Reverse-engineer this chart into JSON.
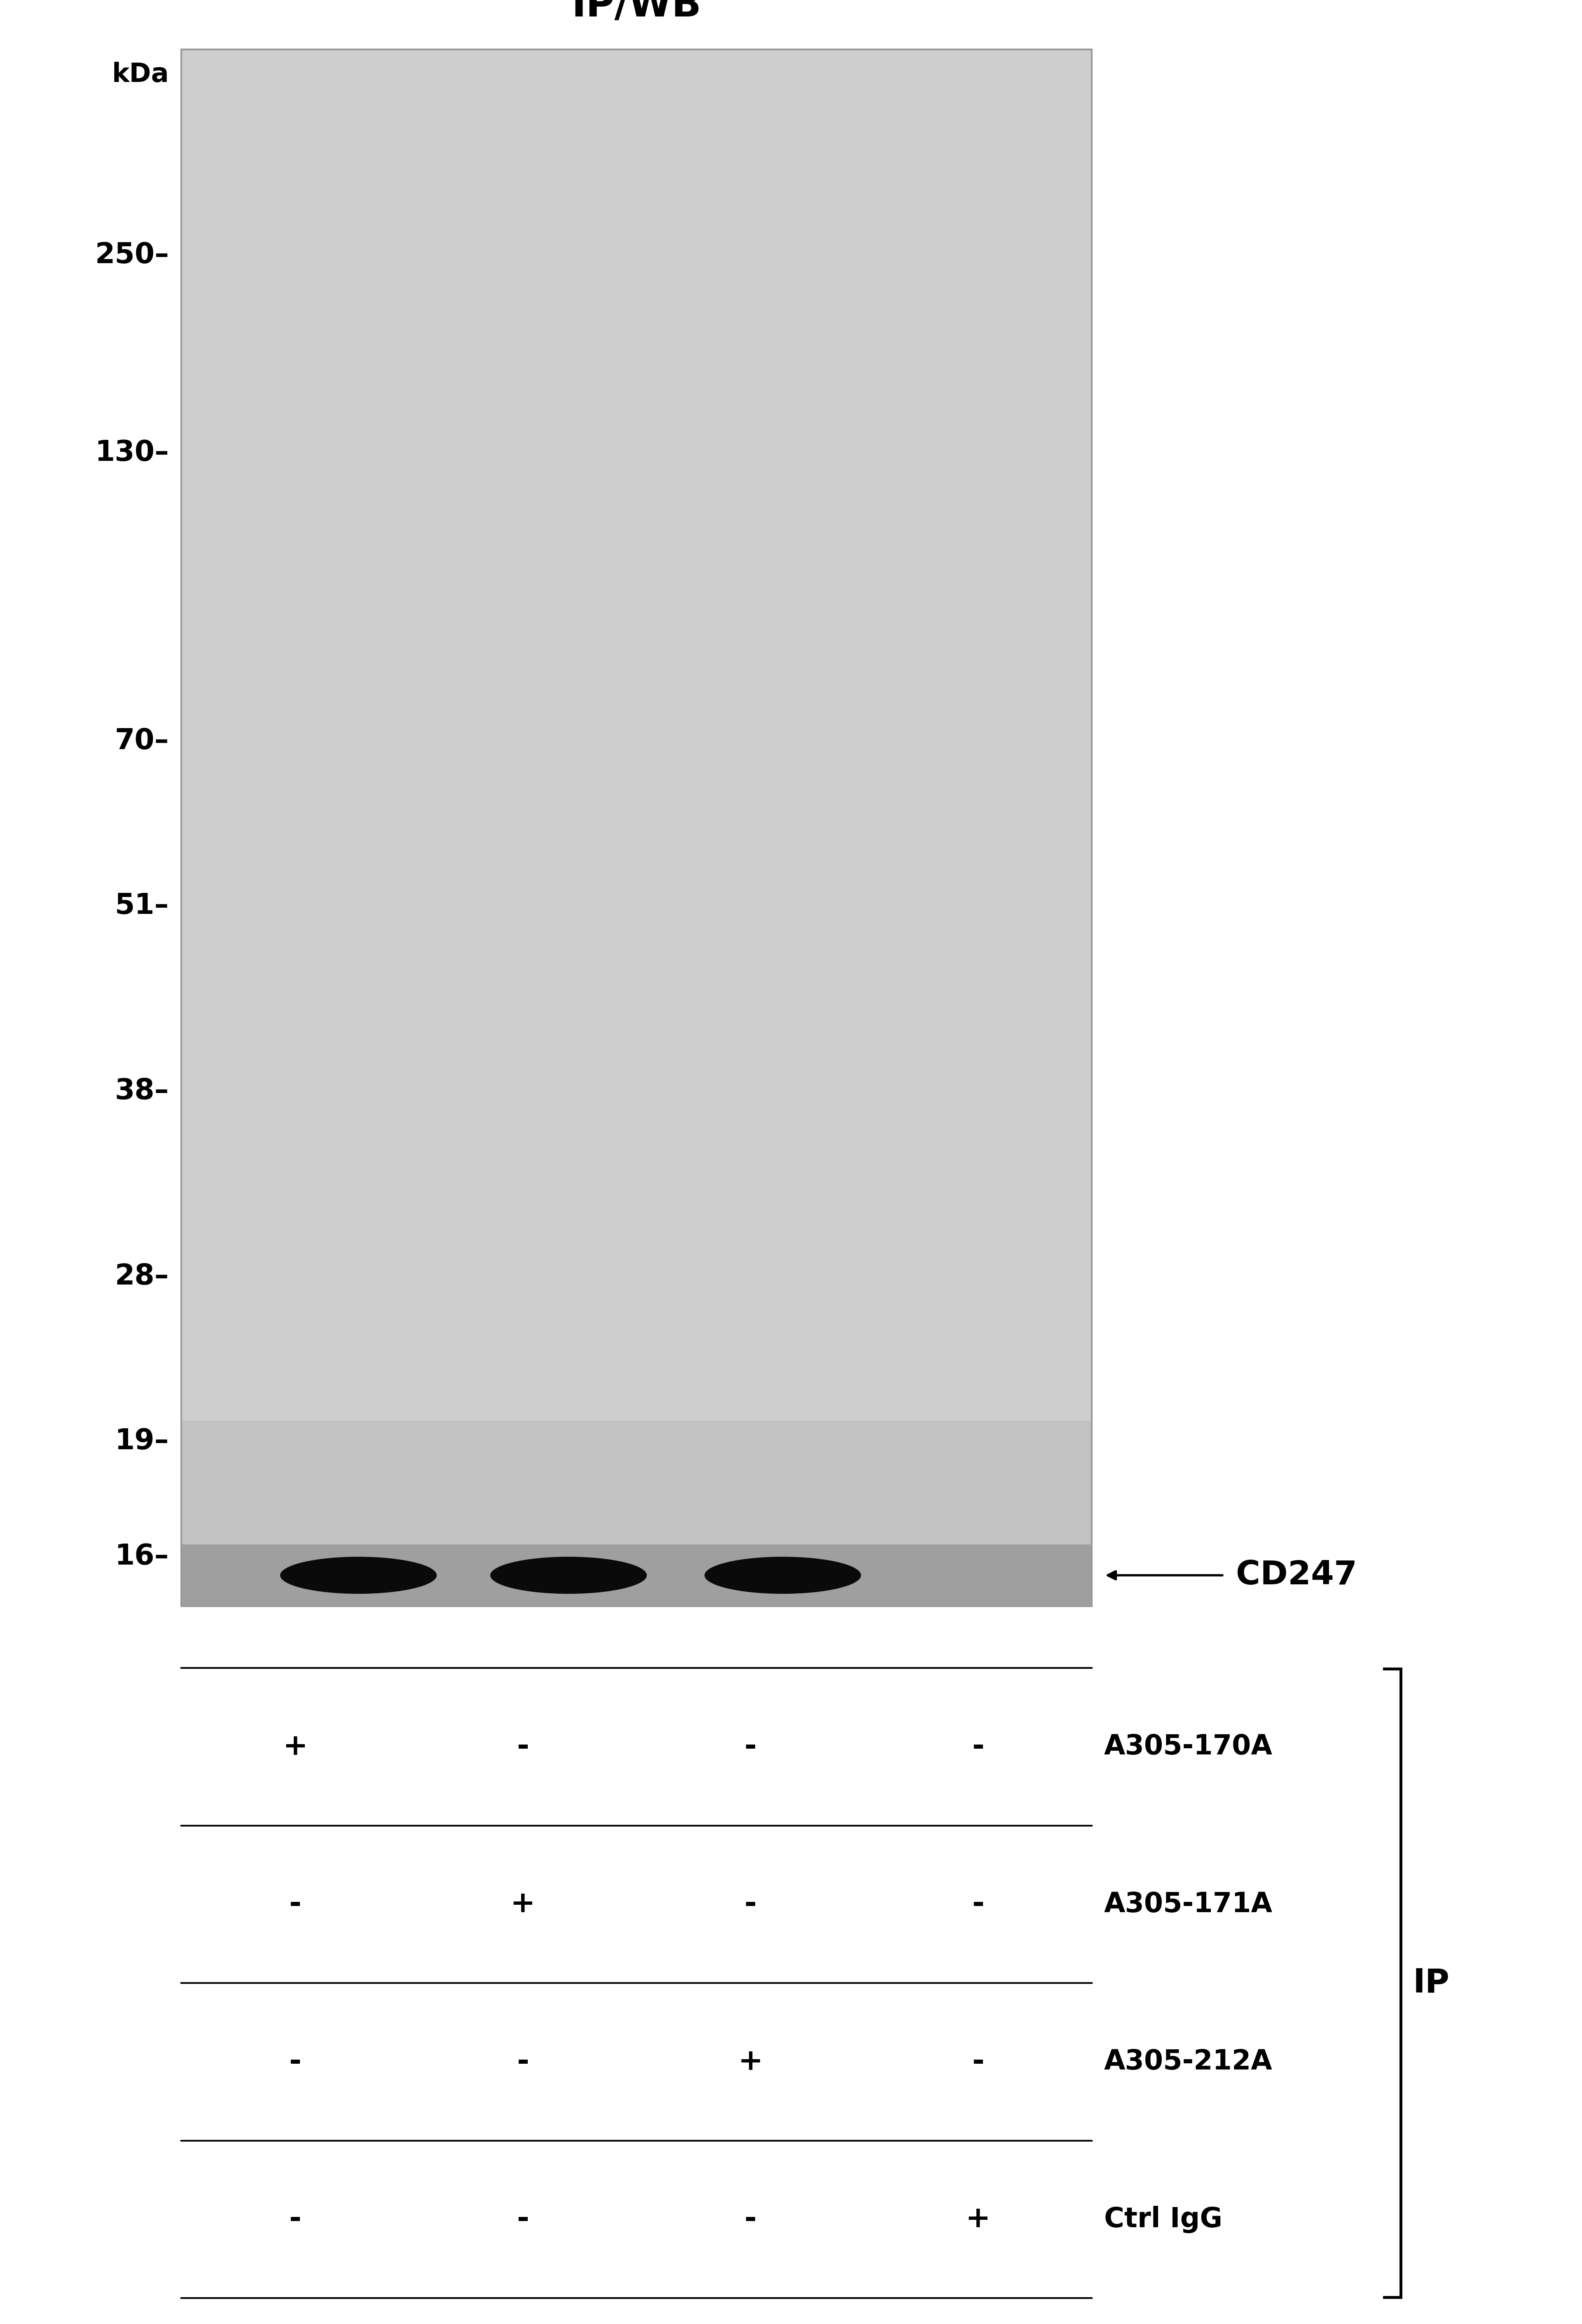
{
  "title": "IP/WB",
  "title_fontsize": 68,
  "kda_label": "kDa",
  "kda_markers": [
    "250",
    "130",
    "70",
    "51",
    "38",
    "28",
    "19",
    "16"
  ],
  "band_color": "#0a0a0a",
  "gel_bg_color": "#cecece",
  "gel_bg_bottom_color": "#b8b8b8",
  "outer_bg_color": "#ffffff",
  "row_labels": [
    "A305-170A",
    "A305-171A",
    "A305-212A",
    "Ctrl IgG"
  ],
  "col_values": [
    [
      "+",
      "-",
      "-",
      "-"
    ],
    [
      "-",
      "+",
      "-",
      "-"
    ],
    [
      "-",
      "-",
      "+",
      "-"
    ],
    [
      "-",
      "-",
      "-",
      "+"
    ]
  ],
  "ip_label": "IP",
  "cd247_label": "CD247",
  "label_fontsize": 58,
  "tick_fontsize": 50,
  "table_fontsize": 52
}
